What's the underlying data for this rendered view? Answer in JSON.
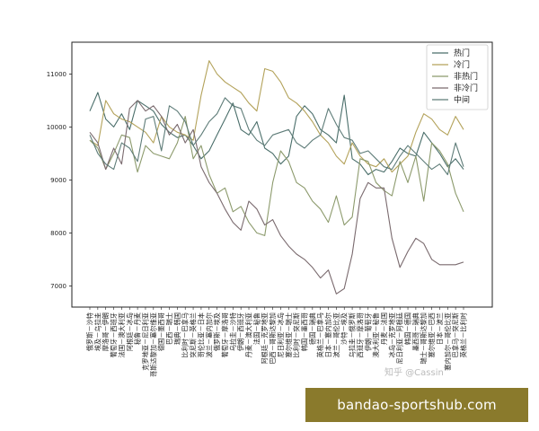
{
  "chart_data": {
    "type": "line",
    "yticks": [
      7000,
      8000,
      9000,
      10000,
      11000
    ],
    "ylim": [
      6600,
      11600
    ],
    "grid": false,
    "legend_placement": "top-right",
    "categories": [
      "俄罗斯－沙特",
      "埃及－乌拉圭",
      "摩洛哥－伊朗",
      "葡萄牙－西班牙",
      "法国－澳大利亚",
      "阿根廷－冰岛",
      "秘鲁－丹麦",
      "克罗地亚－尼日利亚",
      "哥斯达黎加－塞尔维亚",
      "德国－墨西哥",
      "巴西－瑞士",
      "瑞典－韩国",
      "比利时－巴拿马",
      "突尼斯－英格兰",
      "哥伦比亚－日本",
      "波兰－塞内加尔",
      "俄罗斯－埃及",
      "葡萄牙－摩洛哥",
      "乌拉圭－沙特",
      "伊朗－西班牙",
      "丹麦－澳大利亚",
      "法国－秘鲁",
      "阿根廷－克罗地亚",
      "巴西－哥斯达黎加",
      "尼日利亚－冰岛",
      "塞尔维亚－瑞士",
      "比利时－突尼斯",
      "韩国－墨西哥",
      "德国－瑞典",
      "英格兰－巴拿马",
      "日本－塞内加尔",
      "波兰－哥伦比亚",
      "沙特－埃及",
      "乌拉圭－俄罗斯",
      "西班牙－摩洛哥",
      "伊朗－葡萄牙",
      "澳大利亚－秘鲁",
      "丹麦－法国",
      "冰岛－克罗地亚",
      "尼日利亚－阿根廷",
      "韩国－德国",
      "墨西哥－瑞典",
      "瑞士－哥斯达黎加",
      "塞尔维亚－巴西",
      "日本－波兰",
      "塞内加尔－哥伦比亚",
      "巴拿马－突尼斯",
      "英格兰－比利时"
    ],
    "legend": [
      "热门",
      "冷门",
      "非热门",
      "非冷门",
      "中间"
    ],
    "series": [
      {
        "name": "热门",
        "color": "#4a6e6a",
        "values": [
          10300,
          10650,
          10150,
          10000,
          10250,
          9950,
          10500,
          10400,
          10300,
          10050,
          9900,
          9800,
          9850,
          9650,
          9400,
          9550,
          9850,
          10150,
          10450,
          9950,
          9850,
          10100,
          9600,
          9500,
          9300,
          9450,
          10200,
          10400,
          10250,
          9950,
          9850,
          9700,
          10600,
          9400,
          9300,
          9100,
          9200,
          9150,
          9350,
          9600,
          9500,
          9450,
          9900,
          9700,
          9500,
          9250,
          9400,
          9200
        ]
      },
      {
        "name": "冷门",
        "color": "#b3a25a",
        "values": [
          9750,
          9650,
          10500,
          10250,
          10150,
          10100,
          10000,
          9900,
          9700,
          10200,
          10000,
          9900,
          9850,
          9750,
          10600,
          11250,
          11000,
          10850,
          10750,
          10650,
          10450,
          10300,
          11100,
          11050,
          10850,
          10550,
          10450,
          10300,
          10100,
          9850,
          9700,
          9450,
          9300,
          9700,
          9450,
          9300,
          9250,
          9400,
          9150,
          9300,
          9450,
          9900,
          10250,
          10150,
          9950,
          9850,
          10200,
          9950
        ]
      },
      {
        "name": "非热门",
        "color": "#8c9a6c",
        "values": [
          9750,
          9600,
          9200,
          9500,
          9850,
          9800,
          9150,
          9650,
          9500,
          9450,
          9400,
          9700,
          10200,
          9400,
          9650,
          9100,
          8750,
          8850,
          8400,
          8500,
          8200,
          8000,
          7950,
          8950,
          9550,
          9350,
          8950,
          8850,
          8600,
          8450,
          8200,
          8700,
          8150,
          8300,
          9400,
          9350,
          8950,
          8800,
          8700,
          9350,
          8950,
          9450,
          8600,
          9700,
          9550,
          9300,
          8750,
          8400
        ]
      },
      {
        "name": "非冷门",
        "color": "#7a6a6e",
        "values": [
          9900,
          9700,
          9200,
          9600,
          9300,
          10350,
          10500,
          10300,
          10400,
          10200,
          9850,
          10050,
          9700,
          9950,
          9250,
          8950,
          8750,
          8450,
          8200,
          8050,
          8600,
          8450,
          8150,
          8250,
          7950,
          7750,
          7600,
          7500,
          7350,
          7150,
          7300,
          6850,
          6950,
          7600,
          8650,
          8950,
          8850,
          8850,
          7900,
          7350,
          7650,
          7900,
          7800,
          7500,
          7400,
          7400,
          7400,
          7450
        ]
      },
      {
        "name": "中间",
        "color": "#5e7c78",
        "values": [
          9850,
          9500,
          9300,
          9200,
          9700,
          9600,
          9350,
          10150,
          10200,
          9550,
          10400,
          10300,
          10100,
          9650,
          9850,
          10100,
          10250,
          10550,
          10400,
          10350,
          9950,
          9750,
          9650,
          9850,
          9900,
          9950,
          9700,
          9600,
          9750,
          9850,
          10350,
          10050,
          9800,
          9750,
          9500,
          9550,
          9400,
          9250,
          9200,
          9450,
          9650,
          9500,
          9350,
          9200,
          9300,
          9100,
          9700,
          9250
        ]
      }
    ]
  },
  "watermark": "知乎 @Cassin",
  "banner": {
    "text": "bandao-sportshub.com"
  }
}
